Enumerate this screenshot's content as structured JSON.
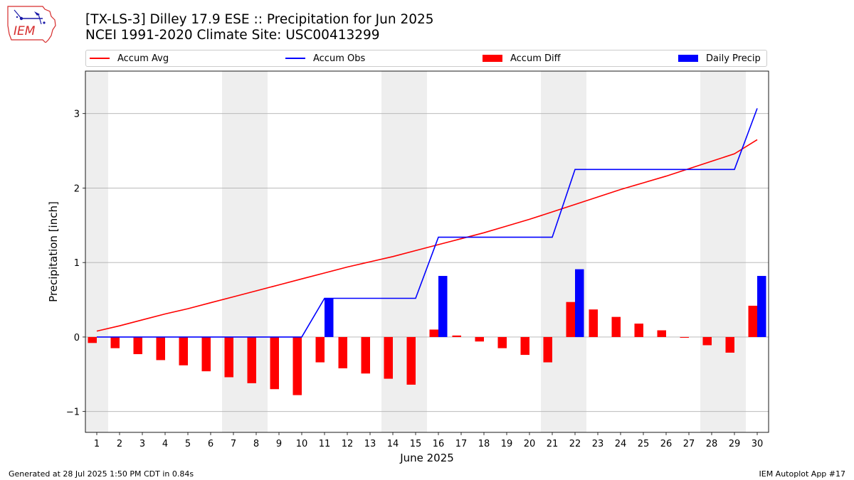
{
  "header": {
    "logo_text": "IEM",
    "title_line1": "[TX-LS-3] Dilley 17.9 ESE :: Precipitation for Jun 2025",
    "title_line2": "NCEI 1991-2020 Climate Site: USC00413299"
  },
  "legend": [
    {
      "label": "Accum Avg",
      "kind": "line",
      "color": "#ff0000"
    },
    {
      "label": "Accum Obs",
      "kind": "line",
      "color": "#0000ff"
    },
    {
      "label": "Accum Diff",
      "kind": "bar",
      "color": "#ff0000"
    },
    {
      "label": "Daily Precip",
      "kind": "bar",
      "color": "#0000ff"
    }
  ],
  "footer": {
    "left": "Generated at 28 Jul 2025 1:50 PM CDT in 0.84s",
    "right": "IEM Autoplot App #17"
  },
  "chart_data": {
    "type": "bar",
    "xlabel": "June 2025",
    "ylabel": "Precipitation [inch]",
    "ylim": [
      -1.28,
      3.57
    ],
    "yticks": [
      -1,
      0,
      1,
      2,
      3
    ],
    "grid": true,
    "legend_position": "top",
    "x": [
      1,
      2,
      3,
      4,
      5,
      6,
      7,
      8,
      9,
      10,
      11,
      12,
      13,
      14,
      15,
      16,
      17,
      18,
      19,
      20,
      21,
      22,
      23,
      24,
      25,
      26,
      27,
      28,
      29,
      30
    ],
    "weekend_days": [
      1,
      7,
      8,
      14,
      15,
      21,
      22,
      28,
      29
    ],
    "series": [
      {
        "name": "Accum Avg",
        "type": "line",
        "color": "#ff0000",
        "values": [
          0.08,
          0.15,
          0.23,
          0.31,
          0.38,
          0.46,
          0.54,
          0.62,
          0.7,
          0.78,
          0.86,
          0.94,
          1.01,
          1.08,
          1.16,
          1.24,
          1.32,
          1.4,
          1.49,
          1.58,
          1.68,
          1.78,
          1.88,
          1.98,
          2.07,
          2.16,
          2.26,
          2.36,
          2.46,
          2.65
        ]
      },
      {
        "name": "Accum Obs",
        "type": "line",
        "color": "#0000ff",
        "values": [
          0,
          0,
          0,
          0,
          0,
          0,
          0,
          0,
          0,
          0,
          0.52,
          0.52,
          0.52,
          0.52,
          0.52,
          1.34,
          1.34,
          1.34,
          1.34,
          1.34,
          1.34,
          2.25,
          2.25,
          2.25,
          2.25,
          2.25,
          2.25,
          2.25,
          2.25,
          3.07
        ]
      },
      {
        "name": "Accum Diff",
        "type": "bar",
        "color": "#ff0000",
        "values": [
          -0.08,
          -0.15,
          -0.23,
          -0.31,
          -0.38,
          -0.46,
          -0.54,
          -0.62,
          -0.7,
          -0.78,
          -0.34,
          -0.42,
          -0.49,
          -0.56,
          -0.64,
          0.1,
          0.02,
          -0.06,
          -0.15,
          -0.24,
          -0.34,
          0.47,
          0.37,
          0.27,
          0.18,
          0.09,
          -0.01,
          -0.11,
          -0.21,
          0.42
        ]
      },
      {
        "name": "Daily Precip",
        "type": "bar",
        "color": "#0000ff",
        "values": [
          0,
          0,
          0,
          0,
          0,
          0,
          0,
          0,
          0,
          0,
          0.52,
          0,
          0,
          0,
          0,
          0.82,
          0,
          0,
          0,
          0,
          0,
          0.91,
          0,
          0,
          0,
          0,
          0,
          0,
          0,
          0.82
        ]
      }
    ]
  }
}
